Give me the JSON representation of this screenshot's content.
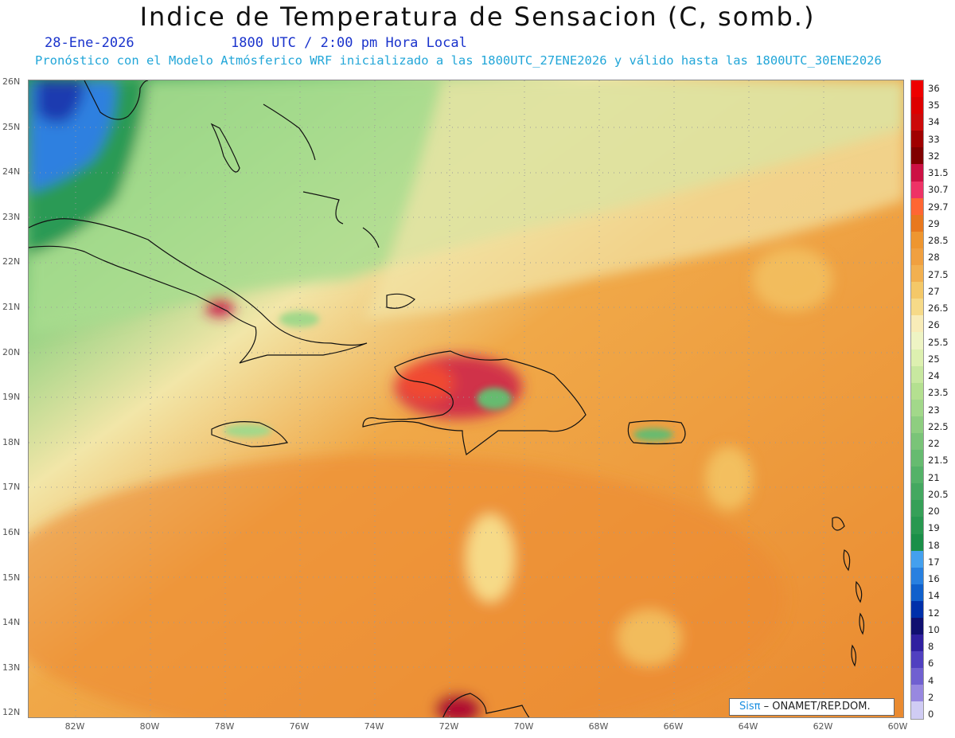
{
  "header": {
    "title": "Indice de Temperatura de Sensacion (C, somb.)",
    "date": "28-Ene-2026",
    "time": "1800 UTC / 2:00 pm Hora Local",
    "model_line": "Pronóstico con el Modelo Atmósferico WRF inicializado a las 1800UTC_27ENE2026 y válido hasta las  1800UTC_30ENE2026"
  },
  "axes": {
    "lat_labels": [
      "26N",
      "25N",
      "24N",
      "23N",
      "22N",
      "21N",
      "20N",
      "19N",
      "18N",
      "17N",
      "16N",
      "15N",
      "14N",
      "13N",
      "12N"
    ],
    "lon_labels": [
      "82W",
      "80W",
      "78W",
      "76W",
      "74W",
      "72W",
      "70W",
      "68W",
      "66W",
      "64W",
      "62W",
      "60W"
    ]
  },
  "colorbar": {
    "labels": [
      "36",
      "35",
      "34",
      "33",
      "32",
      "31.5",
      "30.7",
      "29.7",
      "29",
      "28.5",
      "28",
      "27.5",
      "27",
      "26.5",
      "26",
      "25.5",
      "25",
      "24",
      "23.5",
      "23",
      "22.5",
      "22",
      "21.5",
      "21",
      "20.5",
      "20",
      "19",
      "18",
      "17",
      "16",
      "14",
      "12",
      "10",
      "8",
      "6",
      "4",
      "2",
      "0"
    ],
    "colors": [
      "#ee0000",
      "#dd0000",
      "#cc0a0a",
      "#a00000",
      "#800000",
      "#cc1144",
      "#ee3366",
      "#ff6633",
      "#e8781e",
      "#ee9630",
      "#f0a040",
      "#f2b050",
      "#f4c868",
      "#f6da88",
      "#f8ecb8",
      "#eef4c4",
      "#ddf0b0",
      "#c8e8a0",
      "#b4e090",
      "#a2d88a",
      "#8ece80",
      "#7ac478",
      "#66bb70",
      "#54b268",
      "#44a860",
      "#36a058",
      "#289850",
      "#1a8f48",
      "#44a0ee",
      "#2880e0",
      "#1060cc",
      "#0030aa",
      "#101070",
      "#3020a0",
      "#5040c0",
      "#7060d0",
      "#9888e0",
      "#d0ccf4"
    ]
  },
  "credit": {
    "brand": "Sisπ",
    "text": "– ONAMET/REP.DOM."
  }
}
